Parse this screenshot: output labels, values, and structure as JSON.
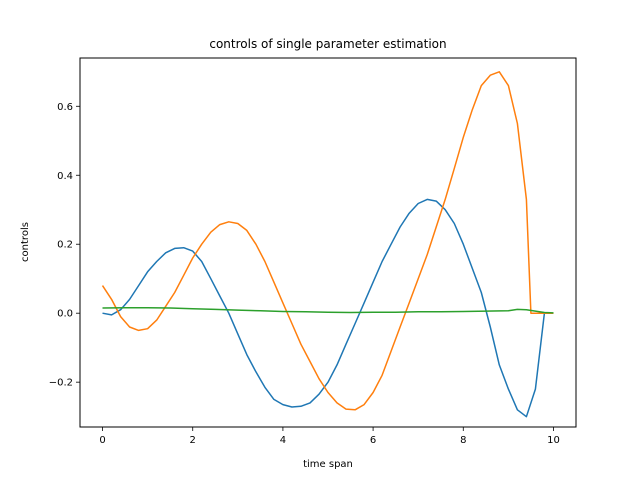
{
  "chart_data": {
    "type": "line",
    "title": "controls of single parameter estimation",
    "xlabel": "time span",
    "ylabel": "controls",
    "xlim": [
      -0.5,
      10.5
    ],
    "ylim": [
      -0.33,
      0.74
    ],
    "xticks": [
      0,
      2,
      4,
      6,
      8,
      10
    ],
    "xtick_labels": [
      "0",
      "2",
      "4",
      "6",
      "8",
      "10"
    ],
    "yticks": [
      -0.2,
      0.0,
      0.2,
      0.4,
      0.6
    ],
    "ytick_labels": [
      "−0.2",
      "0.0",
      "0.2",
      "0.4",
      "0.6"
    ],
    "grid": false,
    "legend": "none",
    "series": [
      {
        "color": "#1f77b4",
        "x": [
          0,
          0.2,
          0.4,
          0.6,
          0.8,
          1.0,
          1.2,
          1.4,
          1.6,
          1.8,
          2.0,
          2.2,
          2.4,
          2.6,
          2.8,
          3.0,
          3.2,
          3.4,
          3.6,
          3.8,
          4.0,
          4.2,
          4.4,
          4.6,
          4.8,
          5.0,
          5.2,
          5.4,
          5.6,
          5.8,
          6.0,
          6.2,
          6.4,
          6.6,
          6.8,
          7.0,
          7.2,
          7.4,
          7.6,
          7.8,
          8.0,
          8.2,
          8.4,
          8.6,
          8.8,
          9.0,
          9.2,
          9.4,
          9.6,
          9.8,
          9.95,
          10.0
        ],
        "y": [
          0.0,
          -0.005,
          0.01,
          0.04,
          0.08,
          0.12,
          0.15,
          0.175,
          0.188,
          0.19,
          0.18,
          0.15,
          0.1,
          0.05,
          0.0,
          -0.06,
          -0.12,
          -0.17,
          -0.215,
          -0.25,
          -0.265,
          -0.272,
          -0.27,
          -0.26,
          -0.235,
          -0.2,
          -0.15,
          -0.09,
          -0.03,
          0.03,
          0.09,
          0.15,
          0.2,
          0.25,
          0.29,
          0.318,
          0.33,
          0.325,
          0.3,
          0.26,
          0.2,
          0.13,
          0.06,
          -0.04,
          -0.15,
          -0.22,
          -0.28,
          -0.3,
          -0.22,
          0.0,
          0.0,
          0.0
        ]
      },
      {
        "color": "#ff7f0e",
        "x": [
          0,
          0.2,
          0.4,
          0.6,
          0.8,
          1.0,
          1.2,
          1.4,
          1.6,
          1.8,
          2.0,
          2.2,
          2.4,
          2.6,
          2.8,
          3.0,
          3.2,
          3.4,
          3.6,
          3.8,
          4.0,
          4.2,
          4.4,
          4.6,
          4.8,
          5.0,
          5.2,
          5.4,
          5.6,
          5.8,
          6.0,
          6.2,
          6.4,
          6.6,
          6.8,
          7.0,
          7.2,
          7.4,
          7.6,
          7.8,
          8.0,
          8.2,
          8.4,
          8.6,
          8.8,
          9.0,
          9.2,
          9.4,
          9.5,
          9.6,
          9.7,
          9.8,
          9.9,
          10.0
        ],
        "y": [
          0.08,
          0.04,
          -0.01,
          -0.04,
          -0.05,
          -0.045,
          -0.02,
          0.02,
          0.06,
          0.11,
          0.16,
          0.2,
          0.235,
          0.257,
          0.265,
          0.26,
          0.24,
          0.2,
          0.15,
          0.09,
          0.03,
          -0.03,
          -0.09,
          -0.14,
          -0.19,
          -0.23,
          -0.26,
          -0.278,
          -0.28,
          -0.265,
          -0.23,
          -0.18,
          -0.11,
          -0.04,
          0.03,
          0.1,
          0.17,
          0.25,
          0.33,
          0.42,
          0.51,
          0.59,
          0.66,
          0.69,
          0.7,
          0.66,
          0.55,
          0.33,
          0.0,
          0.0,
          0.0,
          0.0,
          0.0,
          0.0
        ]
      },
      {
        "color": "#2ca02c",
        "x": [
          0,
          0.5,
          1.0,
          1.5,
          2.0,
          2.5,
          3.0,
          3.5,
          4.0,
          4.5,
          5.0,
          5.5,
          6.0,
          6.5,
          7.0,
          7.5,
          8.0,
          8.5,
          9.0,
          9.2,
          9.4,
          9.6,
          9.8,
          10.0
        ],
        "y": [
          0.015,
          0.016,
          0.016,
          0.015,
          0.013,
          0.011,
          0.009,
          0.007,
          0.005,
          0.004,
          0.003,
          0.002,
          0.003,
          0.003,
          0.004,
          0.004,
          0.005,
          0.006,
          0.007,
          0.011,
          0.01,
          0.006,
          0.002,
          0.001
        ]
      }
    ]
  }
}
